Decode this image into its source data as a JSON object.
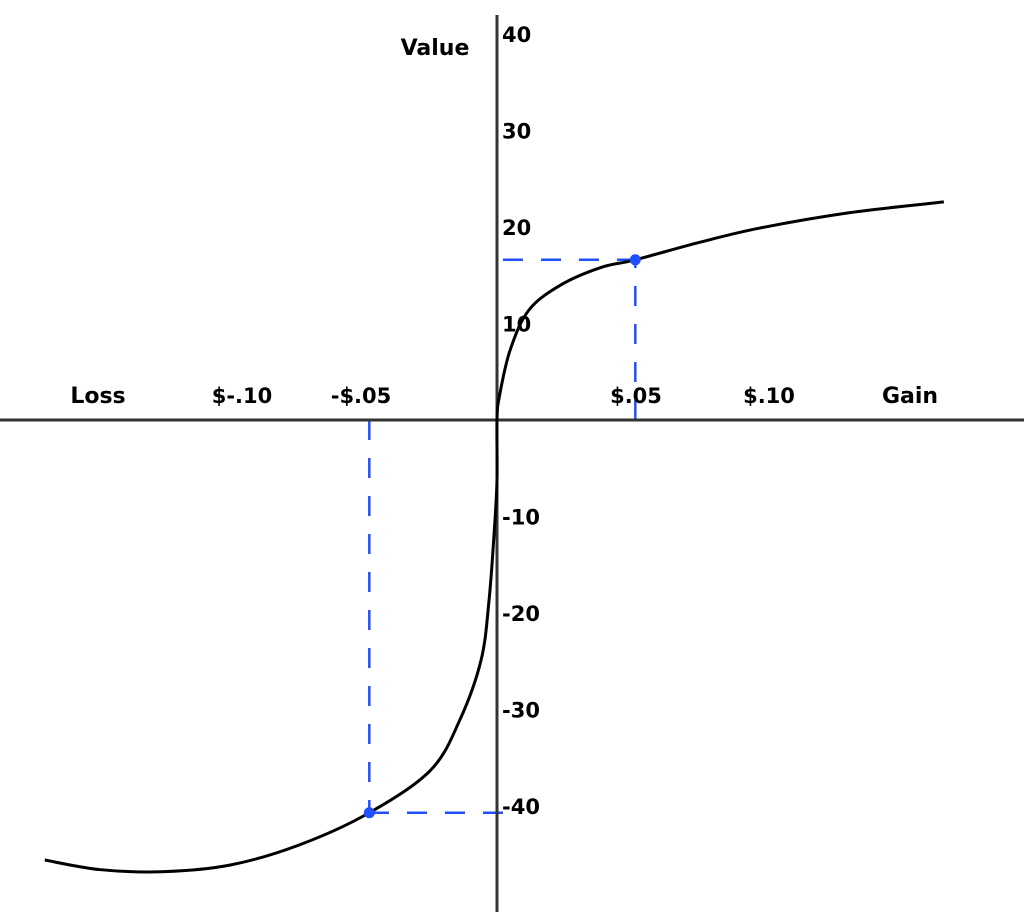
{
  "chart_data": {
    "type": "line",
    "title": "",
    "xlabel_left": "Loss",
    "xlabel_right": "Gain",
    "ylabel": "Value",
    "x_tick_labels": [
      {
        "value": -0.1,
        "label": "$-.10"
      },
      {
        "value": -0.05,
        "label": "-$.05"
      },
      {
        "value": 0.05,
        "label": "$.05"
      },
      {
        "value": 0.1,
        "label": "$.10"
      }
    ],
    "y_ticks": [
      40,
      30,
      20,
      10,
      -10,
      -20,
      -30,
      -40
    ],
    "xlim": [
      -0.187,
      0.198
    ],
    "ylim": [
      -51,
      40
    ],
    "grid": false,
    "series": [
      {
        "color": "#000000",
        "x": [
          -0.17,
          -0.149,
          -0.125,
          -0.1,
          -0.074,
          -0.048,
          -0.025,
          -0.014,
          -0.006,
          -0.003,
          -0.001,
          0,
          0,
          0.001,
          0.005,
          0.012,
          0.024,
          0.039,
          0.052,
          0.076,
          0.099,
          0.133,
          0.168
        ],
        "y": [
          -45.6,
          -46.6,
          -46.8,
          -46.1,
          -44.0,
          -40.7,
          -36.3,
          -31.1,
          -24.9,
          -18.7,
          -11.4,
          -6.2,
          0,
          2.6,
          7.3,
          11.4,
          14.0,
          15.8,
          16.6,
          18.4,
          19.9,
          21.5,
          22.6
        ]
      }
    ],
    "highlighted_points": [
      {
        "x": 0.052,
        "y": 16.6,
        "color": "#1f4fff"
      },
      {
        "x": -0.048,
        "y": -40.7,
        "color": "#1f4fff"
      }
    ]
  }
}
